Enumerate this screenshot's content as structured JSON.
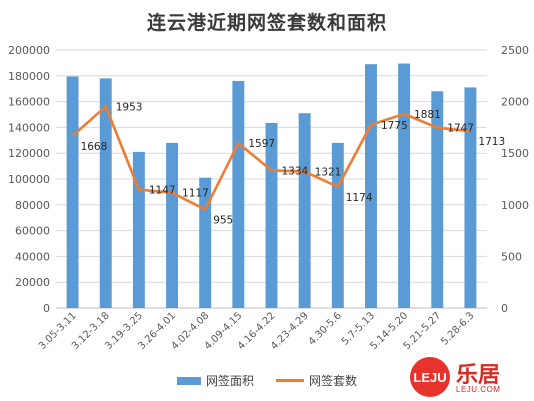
{
  "chart_data": {
    "type": "bar",
    "title": "连云港近期网签套数和面积",
    "categories": [
      "3.05-3.11",
      "3.12-3.18",
      "3.19-3.25",
      "3.26-4.01",
      "4.02-4.08",
      "4.09-4.15",
      "4.16-4.22",
      "4.23-4.29",
      "4.30-5.6",
      "5.7-5.13",
      "5.14-5.20",
      "5.21-5.27",
      "5.28-6.3"
    ],
    "series": [
      {
        "name": "网签面积",
        "type": "bar",
        "axis": "left",
        "color": "#5b9bd5",
        "values": [
          179500,
          178000,
          121000,
          128000,
          101000,
          176000,
          143500,
          151000,
          128000,
          189000,
          189500,
          168000,
          171000
        ]
      },
      {
        "name": "网签套数",
        "type": "line",
        "axis": "right",
        "color": "#ed7d31",
        "values": [
          1668,
          1953,
          1147,
          1117,
          955,
          1597,
          1334,
          1321,
          1174,
          1775,
          1881,
          1747,
          1713
        ]
      }
    ],
    "ylim_left": [
      0,
      200000
    ],
    "yticks_left": [
      0,
      20000,
      40000,
      60000,
      80000,
      100000,
      120000,
      140000,
      160000,
      180000,
      200000
    ],
    "ylim_right": [
      0,
      2500
    ],
    "yticks_right": [
      0,
      500,
      1000,
      1500,
      2000,
      2500
    ],
    "grid": true,
    "legend_position": "bottom"
  },
  "legend": {
    "bar_label": "网签面积",
    "line_label": "网签套数"
  },
  "logo": {
    "mark": "LEJU",
    "cn": "乐居",
    "url": "LEJU.COM"
  }
}
